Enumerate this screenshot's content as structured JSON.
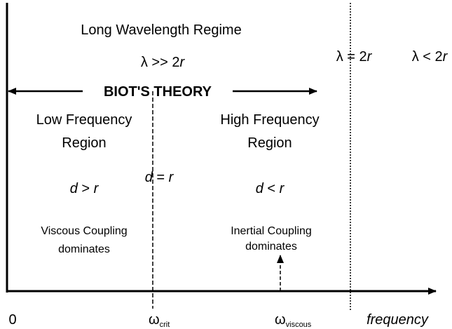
{
  "title": "Long Wavelength Regime",
  "long_condition": [
    "λ >> 2",
    "r"
  ],
  "boundary_condition": [
    "λ = 2",
    "r"
  ],
  "short_condition": [
    "λ < 2",
    "r"
  ],
  "theory": "BIOT'S THEORY",
  "regions": [
    {
      "name": [
        "Low Frequency",
        "Region"
      ],
      "condition": [
        "d",
        " > ",
        "r"
      ],
      "coupling": [
        "Viscous Coupling",
        "dominates"
      ]
    },
    {
      "name": [
        "High Frequency",
        "Region"
      ],
      "condition": [
        "d",
        " < ",
        "r"
      ],
      "coupling": [
        "Inertial Coupling",
        "dominates"
      ]
    }
  ],
  "critical_condition": [
    "d",
    " = ",
    "r"
  ],
  "axis": {
    "origin": "0",
    "marks": [
      [
        "ω",
        "crit"
      ],
      [
        "ω",
        "viscous"
      ]
    ],
    "label": "frequency"
  }
}
